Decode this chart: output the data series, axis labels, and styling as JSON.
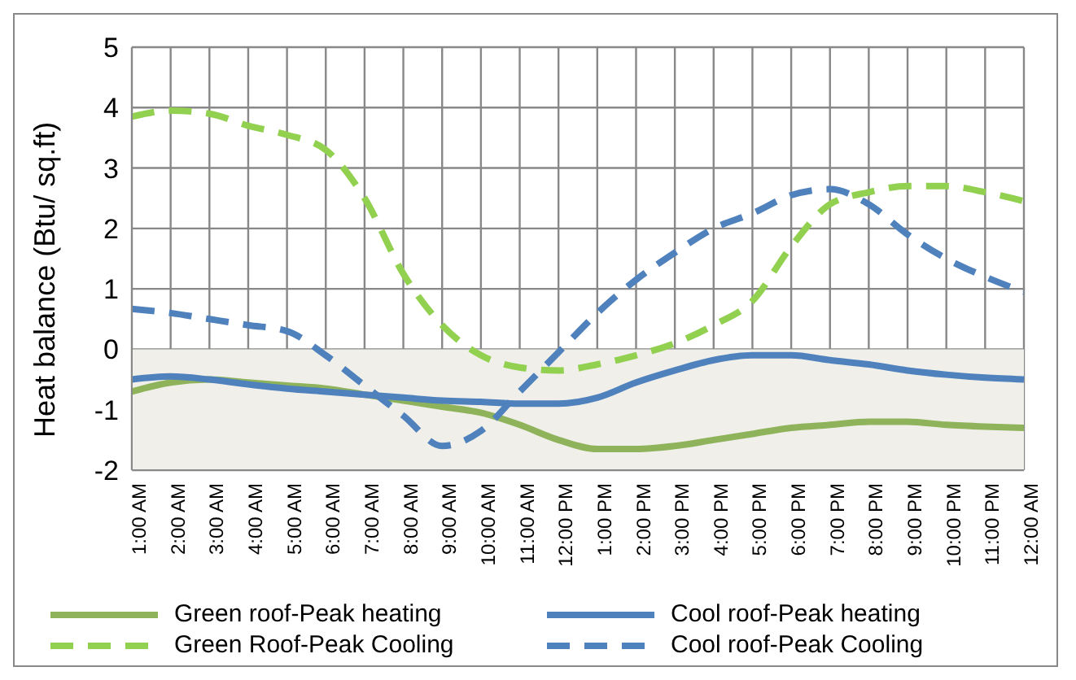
{
  "chart_data": {
    "type": "line",
    "ylabel": "Heat balance (Btu/ sq.ft)",
    "categories": [
      "1:00 AM",
      "2:00 AM",
      "3:00 AM",
      "4:00 AM",
      "5:00 AM",
      "6:00 AM",
      "7:00 AM",
      "8:00 AM",
      "9:00 AM",
      "10:00 AM",
      "11:00 AM",
      "12:00 PM",
      "1:00 PM",
      "2:00 PM",
      "3:00 PM",
      "4:00 PM",
      "5:00 PM",
      "6:00 PM",
      "7:00 PM",
      "8:00 PM",
      "9:00 PM",
      "10:00 PM",
      "11:00 PM",
      "12:00 AM"
    ],
    "series": [
      {
        "name": "Green roof-Peak heating",
        "color": "#8fb35a",
        "line_style": "solid",
        "values": [
          -0.7,
          -0.55,
          -0.5,
          -0.55,
          -0.6,
          -0.65,
          -0.75,
          -0.85,
          -0.95,
          -1.05,
          -1.25,
          -1.5,
          -1.65,
          -1.65,
          -1.6,
          -1.5,
          -1.4,
          -1.3,
          -1.25,
          -1.2,
          -1.2,
          -1.25,
          -1.28,
          -1.3
        ]
      },
      {
        "name": "Cool roof-Peak heating",
        "color": "#4f81bd",
        "line_style": "solid",
        "values": [
          -0.5,
          -0.45,
          -0.5,
          -0.58,
          -0.65,
          -0.7,
          -0.75,
          -0.8,
          -0.85,
          -0.87,
          -0.9,
          -0.9,
          -0.8,
          -0.55,
          -0.35,
          -0.18,
          -0.1,
          -0.1,
          -0.18,
          -0.25,
          -0.35,
          -0.42,
          -0.47,
          -0.5
        ]
      },
      {
        "name": "Green Roof-Peak Cooling",
        "color": "#92d050",
        "line_style": "dashed",
        "values": [
          3.85,
          3.95,
          3.9,
          3.7,
          3.55,
          3.3,
          2.5,
          1.25,
          0.4,
          -0.1,
          -0.3,
          -0.35,
          -0.25,
          -0.1,
          0.1,
          0.4,
          0.8,
          1.7,
          2.4,
          2.6,
          2.7,
          2.7,
          2.6,
          2.45
        ]
      },
      {
        "name": "Cool roof-Peak Cooling",
        "color": "#4f81bd",
        "line_style": "dashed",
        "values": [
          0.67,
          0.6,
          0.5,
          0.4,
          0.3,
          -0.1,
          -0.6,
          -1.1,
          -1.6,
          -1.35,
          -0.7,
          -0.05,
          0.6,
          1.15,
          1.6,
          2.0,
          2.25,
          2.55,
          2.65,
          2.4,
          1.9,
          1.5,
          1.2,
          0.95
        ]
      }
    ],
    "ylim": [
      -2,
      5
    ],
    "yticks": [
      -2,
      -1,
      0,
      1,
      2,
      3,
      4,
      5
    ],
    "bands": [
      {
        "axis": "y",
        "from": -2,
        "to": 0,
        "color": "#f0efea"
      }
    ],
    "grid": true,
    "legend": "bottom",
    "marker": "none"
  }
}
